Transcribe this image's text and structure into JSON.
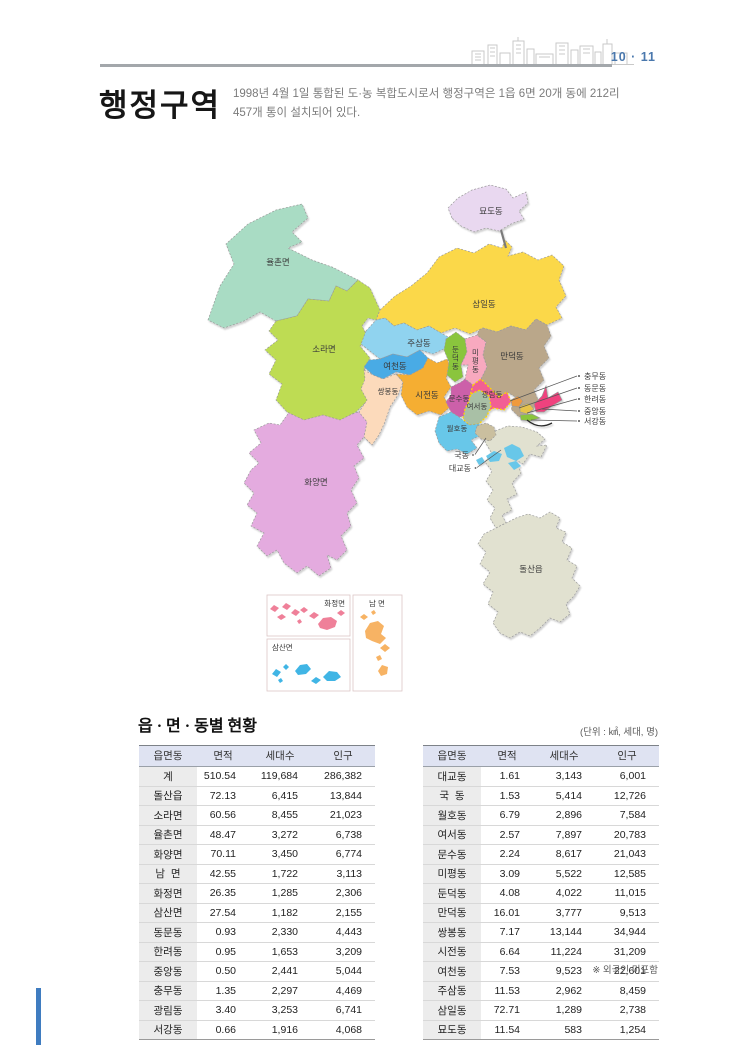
{
  "header": {
    "page_number": "10 · 11",
    "title": "행정구역",
    "description_lines": [
      "1998년 4월 1일 통합된 도·농 복합도시로서 행정구역은 1읍 6면 20개 동에 212리",
      "457개 통이 설치되어 있다."
    ]
  },
  "map": {
    "labels": {
      "yulchon": "율촌면",
      "sora": "소라면",
      "myodo": "묘도동",
      "samil": "삼일동",
      "jusam": "주삼동",
      "yeocheon": "여천동",
      "ssangbong": "쌍봉동",
      "sijeon": "시전동",
      "dundeok": "둔덕동",
      "mipyeong": "미평동",
      "mandeok": "만덕동",
      "gwangnim": "광림동",
      "munsu": "문수동",
      "yeoseo": "여서동",
      "wolho": "월호동",
      "hwayang": "화양면",
      "dolsan": "돌산읍"
    },
    "callouts": [
      "충무동",
      "동문동",
      "한려동",
      "중앙동",
      "서강동"
    ],
    "small_callouts": [
      "국동",
      "대교동"
    ],
    "insets": {
      "hwajeong": "화정면",
      "nam": "남 면",
      "samsan": "삼산면"
    },
    "region_colors": {
      "yulchon": "#a9dcc4",
      "sora": "#bedc52",
      "myodo": "#e9d8f0",
      "samil": "#fbd84a",
      "jusam": "#90d3ef",
      "yeocheon": "#4aabe5",
      "ssangbong": "#fcdabb",
      "sijeon": "#f5ae32",
      "dundeok": "#8ac53e",
      "mipyeong": "#f8a9bf",
      "mandeok": "#baa78a",
      "gwangnim": "#f25e94",
      "munsu": "#cc60a9",
      "yeoseo": "#a9c0a6",
      "wolho": "#67c7e9",
      "gukdong": "#cabf9f",
      "hwayang": "#e4abdf",
      "dolsan": "#e1e1d0",
      "harbor_orange": "#f09a3e",
      "harbor_yellow": "#e8c34a",
      "harbor_pink": "#f0437e",
      "harbor_green": "#8ac53e",
      "islets_cyan": "#67c7e9",
      "inset_hwajeong": "#ef8099",
      "inset_nam": "#f7b364",
      "inset_samsan": "#40b5e5"
    }
  },
  "tables": {
    "title": "읍 · 면 · 동별 현황",
    "unit_label": "(단위 : ㎢, 세대, 명)",
    "headers": [
      "읍면동",
      "면적",
      "세대수",
      "인구"
    ],
    "left_rows": [
      [
        "계",
        "510.54",
        "119,684",
        "286,382"
      ],
      [
        "돌산읍",
        "72.13",
        "6,415",
        "13,844"
      ],
      [
        "소라면",
        "60.56",
        "8,455",
        "21,023"
      ],
      [
        "율촌면",
        "48.47",
        "3,272",
        "6,738"
      ],
      [
        "화양면",
        "70.11",
        "3,450",
        "6,774"
      ],
      [
        "남  면",
        "42.55",
        "1,722",
        "3,113"
      ],
      [
        "화정면",
        "26.35",
        "1,285",
        "2,306"
      ],
      [
        "삼산면",
        "27.54",
        "1,182",
        "2,155"
      ],
      [
        "동문동",
        "0.93",
        "2,330",
        "4,443"
      ],
      [
        "한려동",
        "0.95",
        "1,653",
        "3,209"
      ],
      [
        "중앙동",
        "0.50",
        "2,441",
        "5,044"
      ],
      [
        "충무동",
        "1.35",
        "2,297",
        "4,469"
      ],
      [
        "광림동",
        "3.40",
        "3,253",
        "6,741"
      ],
      [
        "서강동",
        "0.66",
        "1,916",
        "4,068"
      ]
    ],
    "right_rows": [
      [
        "대교동",
        "1.61",
        "3,143",
        "6,001"
      ],
      [
        "국  동",
        "1.53",
        "5,414",
        "12,726"
      ],
      [
        "월호동",
        "6.79",
        "2,896",
        "7,584"
      ],
      [
        "여서동",
        "2.57",
        "7,897",
        "20,783"
      ],
      [
        "문수동",
        "2.24",
        "8,617",
        "21,043"
      ],
      [
        "미평동",
        "3.09",
        "5,522",
        "12,585"
      ],
      [
        "둔덕동",
        "4.08",
        "4,022",
        "11,015"
      ],
      [
        "만덕동",
        "16.01",
        "3,777",
        "9,513"
      ],
      [
        "쌍봉동",
        "7.17",
        "13,144",
        "34,944"
      ],
      [
        "시전동",
        "6.64",
        "11,224",
        "31,209"
      ],
      [
        "여천동",
        "7.53",
        "9,523",
        "22,601"
      ],
      [
        "주삼동",
        "11.53",
        "2,962",
        "8,459"
      ],
      [
        "삼일동",
        "72.71",
        "1,289",
        "2,738"
      ],
      [
        "묘도동",
        "11.54",
        "583",
        "1,254"
      ]
    ],
    "footnote": "※ 외국인 미포함"
  },
  "colors": {
    "accent_blue": "#4a78ad",
    "table_header_bg": "#dfe3f2"
  }
}
